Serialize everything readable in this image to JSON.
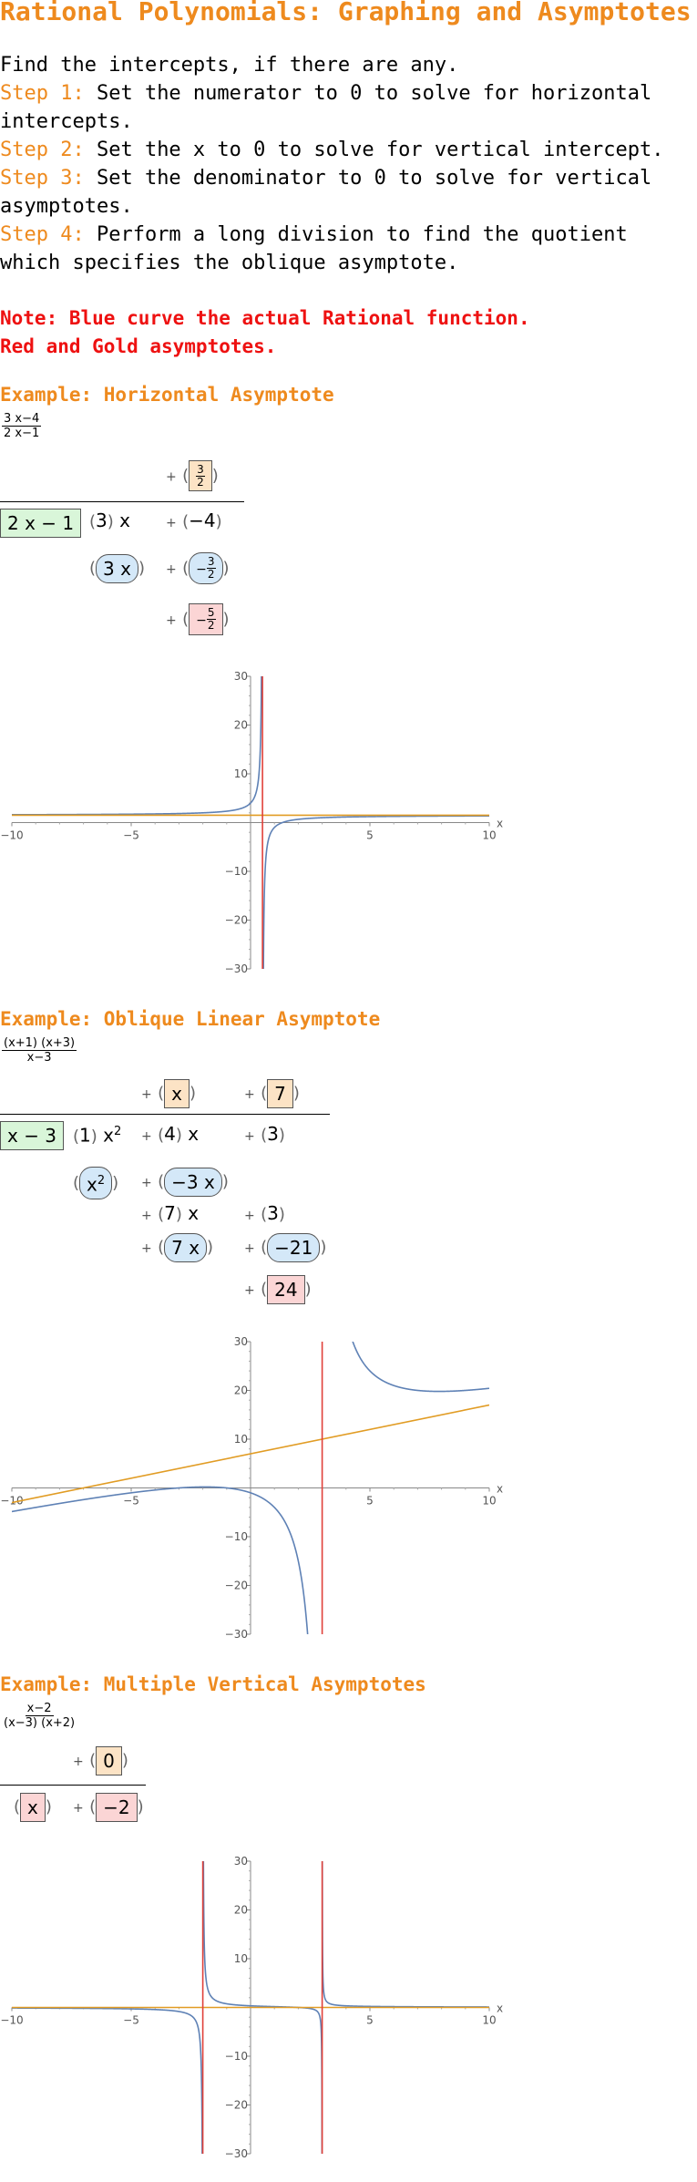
{
  "title": "Rational Polynomials: Graphing and Asymptotes",
  "intro": "Find the intercepts, if there are any.",
  "steps": [
    {
      "label": "Step 1:",
      "text": " Set the numerator to 0 to solve for horizontal intercepts."
    },
    {
      "label": "Step 2:",
      "text": " Set the x to 0 to solve for vertical intercept."
    },
    {
      "label": "Step 3:",
      "text": " Set the denominator to 0 to solve for vertical asymptotes."
    },
    {
      "label": "Step 4:",
      "text": " Perform a long division to find the quotient which specifies the oblique asymptote."
    }
  ],
  "note": {
    "line1": "Note: Blue curve the actual Rational function.",
    "line2": "Red and Gold asymptotes."
  },
  "examples": [
    {
      "title": "Example: Horizontal Asymptote",
      "function": {
        "num": "3 x−4",
        "den": "2 x−1"
      },
      "division": {
        "quotient_num": "3",
        "quotient_den": "2",
        "divisor": "2 x − 1",
        "dividend_coef": "3",
        "dividend_var": "x",
        "dividend_const": "−4",
        "sub1": "3 x",
        "sub2_num": "3",
        "sub2_den": "2",
        "sub2_sign": "−",
        "rem_num": "5",
        "rem_den": "2",
        "rem_sign": "−"
      }
    },
    {
      "title": "Example: Oblique Linear Asymptote",
      "function": {
        "num": "(x+1) (x+3)",
        "den": "x−3"
      },
      "division": {
        "q1": "x",
        "q2": "7",
        "divisor": "x − 3",
        "d1_coef": "1",
        "d1_var": "x",
        "d1_exp": "2",
        "d2": "4",
        "d2_var": "x",
        "d3": "3",
        "s1": "x",
        "s1_exp": "2",
        "s2": "−3 x",
        "r1": "7",
        "r1_var": "x",
        "r2": "3",
        "s3": "7 x",
        "s4": "−21",
        "rem": "24"
      }
    },
    {
      "title": "Example: Multiple Vertical Asymptotes",
      "function": {
        "num": "x−2",
        "den": "(x−3) (x+2)"
      },
      "division": {
        "quotient": "0",
        "divisor": "x",
        "dividend": "−2"
      }
    }
  ],
  "plus_sign": "+",
  "axis": {
    "x_ticks": [
      "−10",
      "−5",
      "5",
      "10"
    ],
    "y_ticks": [
      "30",
      "20",
      "10",
      "−10",
      "−20",
      "−30"
    ],
    "x_label": "x"
  },
  "chart_data": [
    {
      "type": "line",
      "xlim": [
        -10,
        10
      ],
      "ylim": [
        -30,
        30
      ],
      "series": [],
      "function": "(3x-4)/(2x-1)",
      "asymptotes": {
        "vertical": [
          0.5
        ],
        "horizontal": [
          1.5
        ]
      },
      "colors": {
        "curve": "#5e81b5",
        "vertical": "#e0413a",
        "oblique": "#e19c24"
      }
    },
    {
      "type": "line",
      "xlim": [
        -10,
        10
      ],
      "ylim": [
        -30,
        30
      ],
      "series": [],
      "function": "(x+1)(x+3)/(x-3)",
      "asymptotes": {
        "vertical": [
          3
        ],
        "oblique": {
          "slope": 1,
          "intercept": 7
        }
      },
      "colors": {
        "curve": "#5e81b5",
        "vertical": "#e0413a",
        "oblique": "#e19c24"
      }
    },
    {
      "type": "line",
      "xlim": [
        -10,
        10
      ],
      "ylim": [
        -30,
        30
      ],
      "series": [],
      "function": "(x-2)/((x-3)(x+2))",
      "asymptotes": {
        "vertical": [
          -2,
          3
        ],
        "horizontal": [
          0
        ]
      },
      "colors": {
        "curve": "#5e81b5",
        "vertical": "#e0413a",
        "oblique": "#e19c24"
      }
    }
  ]
}
